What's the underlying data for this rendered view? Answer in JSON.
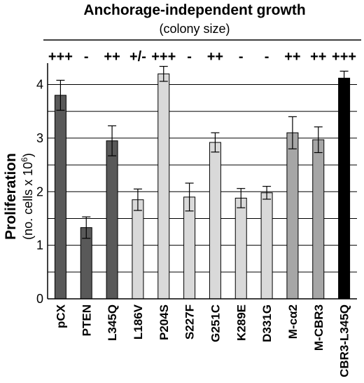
{
  "chart_data": {
    "type": "bar",
    "title": "Anchorage-independent growth",
    "subtitle": "(colony size)",
    "ylabel": "Proliferation",
    "ylabel_unit": "(no. cells x 10",
    "ylabel_unit_sup": "6",
    "ylabel_unit_close": ")",
    "ylim": [
      0,
      4.4
    ],
    "yticks": [
      "0",
      "1",
      "2",
      "3",
      "4"
    ],
    "grid": true,
    "categories": [
      "pCX",
      "PTEN",
      "L345Q",
      "L186V",
      "P204S",
      "S227F",
      "G251C",
      "K289E",
      "D331G",
      "M-cα2",
      "M-CBR3",
      "CBR3-L345Q"
    ],
    "values": [
      3.8,
      1.33,
      2.95,
      1.85,
      4.2,
      1.9,
      2.92,
      1.88,
      1.98,
      3.1,
      2.97,
      4.12
    ],
    "errors": [
      0.28,
      0.2,
      0.28,
      0.2,
      0.14,
      0.26,
      0.18,
      0.18,
      0.12,
      0.3,
      0.24,
      0.13
    ],
    "growth": [
      "+++",
      "-",
      "++",
      "+/-",
      "+++",
      "-",
      "++",
      "-",
      "-",
      "++",
      "++",
      "+++"
    ],
    "bar_colors": [
      "#595959",
      "#595959",
      "#595959",
      "#d9d9d9",
      "#d9d9d9",
      "#d9d9d9",
      "#d9d9d9",
      "#d9d9d9",
      "#d9d9d9",
      "#a6a6a6",
      "#a6a6a6",
      "#000000"
    ]
  }
}
